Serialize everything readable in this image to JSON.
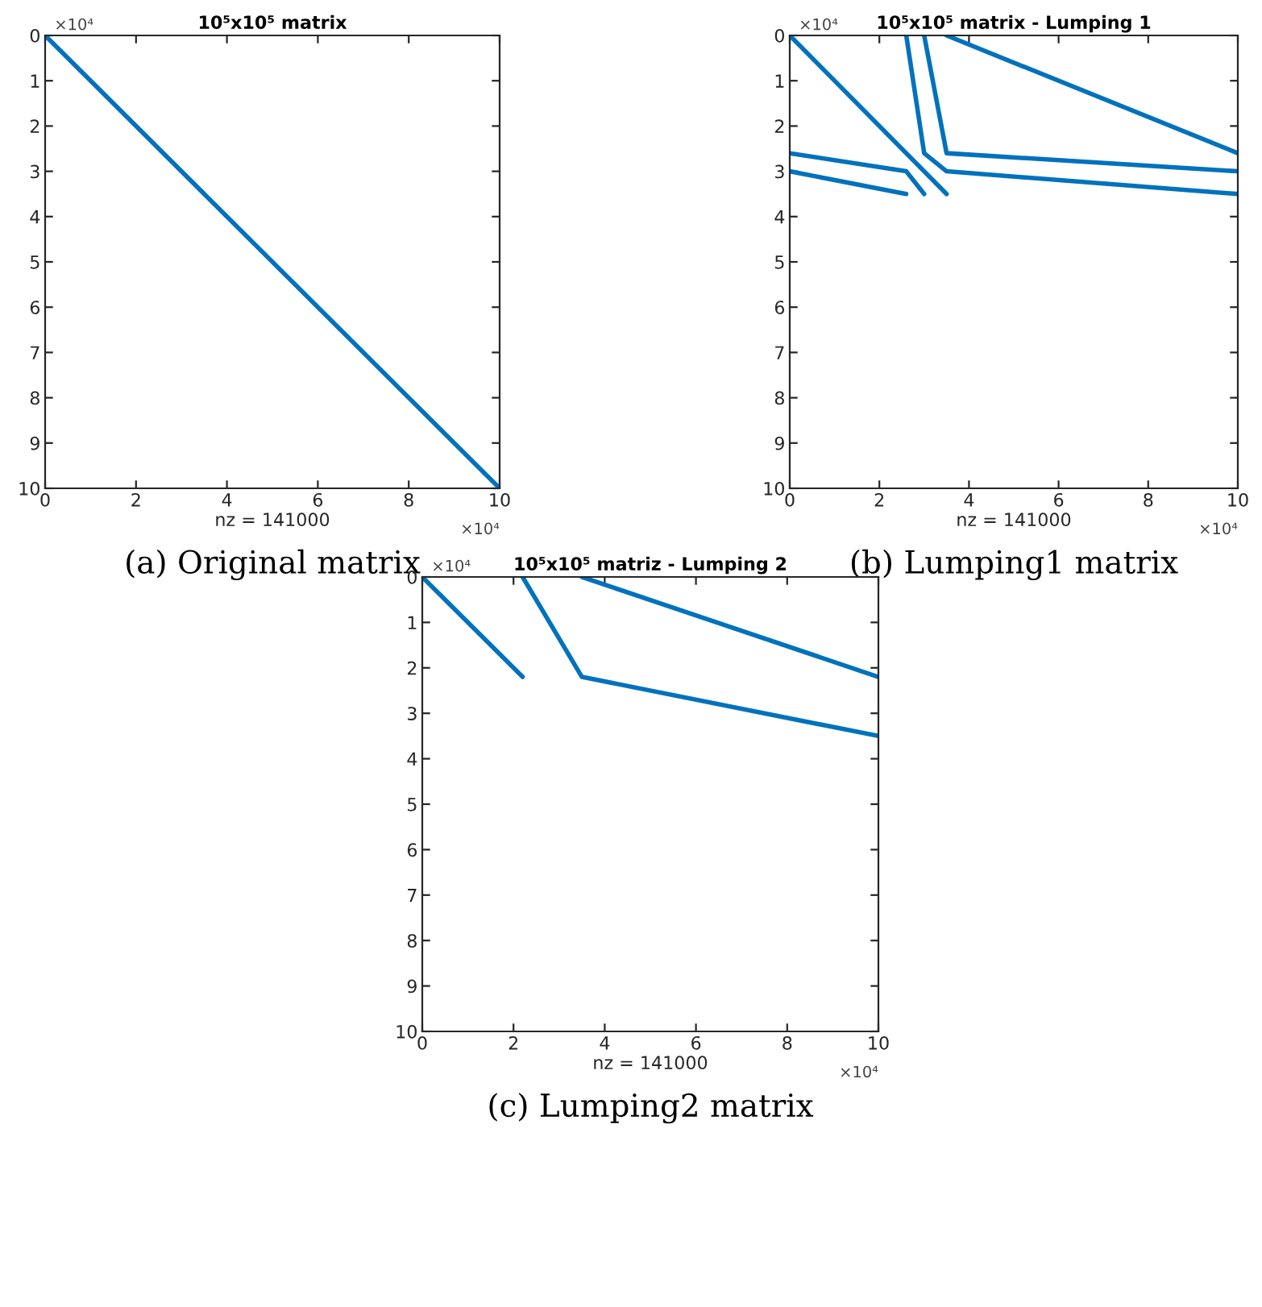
{
  "chart_data": [
    {
      "type": "line",
      "title": "10⁵x10⁵ matrix",
      "xlabel": "nz = 141000",
      "annotations": [
        "×10⁴",
        "×10⁴",
        "(a) Original matrix"
      ],
      "xlim": [
        0,
        10
      ],
      "ylim": [
        10,
        0
      ],
      "xticks": [
        0,
        2,
        4,
        6,
        8,
        10
      ],
      "yticks": [
        0,
        1,
        2,
        3,
        4,
        5,
        6,
        7,
        8,
        9,
        10
      ],
      "grid": false,
      "marker": "none",
      "line_style": "solid",
      "series": [
        {
          "color": "#0072bd",
          "x": [
            0,
            10
          ],
          "values": [
            0,
            10
          ]
        }
      ]
    },
    {
      "type": "line",
      "title": "10⁵x10⁵ matrix - Lumping 1",
      "xlabel": "nz = 141000",
      "annotations": [
        "×10⁴",
        "×10⁴",
        "(b) Lumping1 matrix"
      ],
      "xlim": [
        0,
        10
      ],
      "ylim": [
        10,
        0
      ],
      "xticks": [
        0,
        2,
        4,
        6,
        8,
        10
      ],
      "yticks": [
        0,
        1,
        2,
        3,
        4,
        5,
        6,
        7,
        8,
        9,
        10
      ],
      "grid": false,
      "marker": "none",
      "line_style": "solid",
      "series": [
        {
          "color": "#0072bd",
          "x": [
            0,
            3.5
          ],
          "values": [
            0,
            3.5
          ]
        },
        {
          "color": "#0072bd",
          "x": [
            2.6,
            3.0,
            3.5,
            10
          ],
          "values": [
            0,
            2.6,
            3.0,
            3.5
          ]
        },
        {
          "color": "#0072bd",
          "x": [
            3.0,
            3.5,
            10
          ],
          "values": [
            0,
            2.6,
            3.0
          ]
        },
        {
          "color": "#0072bd",
          "x": [
            3.5,
            10
          ],
          "values": [
            0,
            2.6
          ]
        },
        {
          "color": "#0072bd",
          "x": [
            0,
            2.6,
            3.0
          ],
          "values": [
            2.6,
            3.0,
            3.5
          ]
        },
        {
          "color": "#0072bd",
          "x": [
            0,
            2.6
          ],
          "values": [
            3.0,
            3.5
          ]
        }
      ]
    },
    {
      "type": "line",
      "title": "10⁵x10⁵ matriz - Lumping 2",
      "xlabel": "nz = 141000",
      "annotations": [
        "×10⁴",
        "×10⁴",
        "(c) Lumping2 matrix"
      ],
      "xlim": [
        0,
        10
      ],
      "ylim": [
        10,
        0
      ],
      "xticks": [
        0,
        2,
        4,
        6,
        8,
        10
      ],
      "yticks": [
        0,
        1,
        2,
        3,
        4,
        5,
        6,
        7,
        8,
        9,
        10
      ],
      "grid": false,
      "marker": "none",
      "line_style": "solid",
      "series": [
        {
          "color": "#0072bd",
          "x": [
            0,
            2.2
          ],
          "values": [
            0,
            2.2
          ]
        },
        {
          "color": "#0072bd",
          "x": [
            2.2,
            3.5,
            10
          ],
          "values": [
            0,
            2.2,
            3.5
          ]
        },
        {
          "color": "#0072bd",
          "x": [
            3.5,
            10
          ],
          "values": [
            0,
            2.2
          ]
        }
      ]
    }
  ]
}
